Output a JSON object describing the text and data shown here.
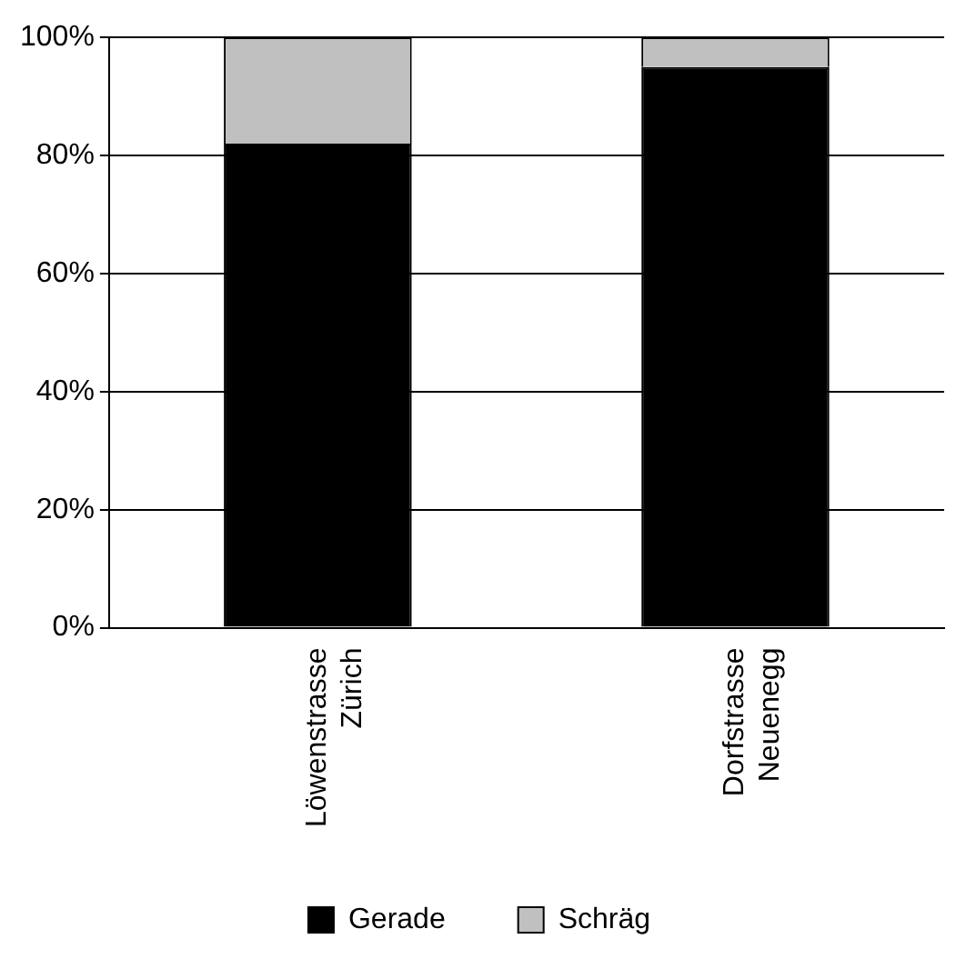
{
  "chart_data": {
    "type": "bar",
    "stacked": true,
    "categories": [
      "Löwenstrasse Zürich",
      "Dorfstrasse Neuenegg"
    ],
    "series": [
      {
        "name": "Gerade",
        "color": "#000000",
        "values": [
          82,
          95
        ]
      },
      {
        "name": "Schräg",
        "color": "#c0c0c0",
        "values": [
          18,
          5
        ]
      }
    ],
    "ylim": [
      0,
      100
    ],
    "yticks": [
      {
        "value": 0,
        "label": "0%"
      },
      {
        "value": 20,
        "label": "20%"
      },
      {
        "value": 40,
        "label": "40%"
      },
      {
        "value": 60,
        "label": "60%"
      },
      {
        "value": 80,
        "label": "80%"
      },
      {
        "value": 100,
        "label": "100%"
      }
    ],
    "grid": "y",
    "legend": "bottom"
  }
}
